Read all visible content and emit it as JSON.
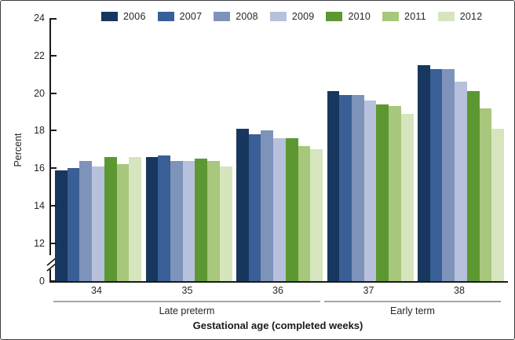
{
  "chart_data": {
    "type": "bar",
    "title": "",
    "ylabel": "Percent",
    "xlabel": "Gestational age (completed weeks)",
    "legend_position": "top",
    "grid": false,
    "y_axis_break_between": [
      0,
      12
    ],
    "y_ticks": [
      24,
      22,
      20,
      18,
      16,
      14,
      12,
      0
    ],
    "ylim_display": [
      12,
      24
    ],
    "categories": [
      "34",
      "35",
      "36",
      "37",
      "38"
    ],
    "group_brackets": [
      {
        "label": "Late preterm",
        "start": 0,
        "end": 2
      },
      {
        "label": "Early term",
        "start": 3,
        "end": 4
      }
    ],
    "series": [
      {
        "name": "2006",
        "color": "#17375E",
        "values": [
          15.9,
          16.6,
          18.1,
          20.1,
          21.5
        ]
      },
      {
        "name": "2007",
        "color": "#3A5F96",
        "values": [
          16.0,
          16.7,
          17.8,
          19.9,
          21.3
        ]
      },
      {
        "name": "2008",
        "color": "#7E93BA",
        "values": [
          16.4,
          16.4,
          18.0,
          19.9,
          21.3
        ]
      },
      {
        "name": "2009",
        "color": "#B7C1DC",
        "values": [
          16.1,
          16.4,
          17.6,
          19.6,
          20.6
        ]
      },
      {
        "name": "2010",
        "color": "#5D9732",
        "values": [
          16.6,
          16.5,
          17.6,
          19.4,
          20.1
        ]
      },
      {
        "name": "2011",
        "color": "#A7C77C",
        "values": [
          16.2,
          16.4,
          17.2,
          19.3,
          19.2
        ]
      },
      {
        "name": "2012",
        "color": "#D6E5BE",
        "values": [
          16.6,
          16.1,
          17.0,
          18.9,
          18.1
        ]
      }
    ]
  }
}
